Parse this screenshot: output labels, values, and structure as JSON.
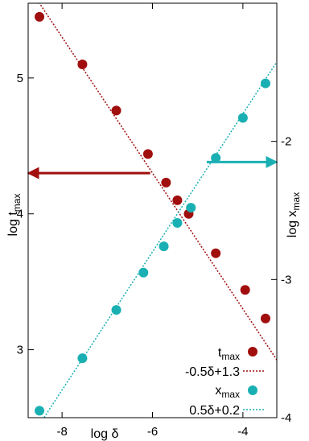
{
  "chart_data": {
    "type": "scatter",
    "title": "",
    "xlabel": "log δ",
    "ylabel_left": "log t",
    "ylabel_left_sub": "max",
    "ylabel_right": "log x",
    "ylabel_right_sub": "max",
    "xlim": [
      -8.75,
      -3.25
    ],
    "ylim_left": [
      2.5,
      5.55
    ],
    "ylim_right": [
      -4.0,
      -1.0
    ],
    "x_ticks": [
      -8,
      -6,
      -4
    ],
    "y_left_ticks": [
      3,
      4,
      5
    ],
    "y_right_ticks": [
      -4,
      -3,
      -2
    ],
    "grid": false,
    "legend_position": "bottom-right",
    "series": [
      {
        "name": "t",
        "name_sub": "max",
        "axis": "left",
        "color": "#a10e0e",
        "x": [
          -8.5,
          -7.55,
          -6.8,
          -6.1,
          -5.7,
          -5.45,
          -5.2,
          -4.6,
          -3.95,
          -3.5
        ],
        "y": [
          5.45,
          5.1,
          4.76,
          4.44,
          4.23,
          4.1,
          4.0,
          3.71,
          3.44,
          3.23
        ]
      },
      {
        "name": "x",
        "name_sub": "max",
        "axis": "right",
        "color": "#1ab0b3",
        "x": [
          -8.5,
          -7.55,
          -6.8,
          -6.2,
          -5.75,
          -5.45,
          -5.15,
          -4.6,
          -4.0,
          -3.5
        ],
        "y": [
          -3.95,
          -3.57,
          -3.22,
          -2.95,
          -2.76,
          -2.59,
          -2.48,
          -2.12,
          -1.83,
          -1.58
        ]
      }
    ],
    "fits": [
      {
        "label": "-0.5δ+1.3",
        "axis": "left",
        "color": "#a10e0e",
        "slope": -0.5,
        "intercept": 1.3
      },
      {
        "label": "0.5δ+0.2",
        "axis": "right",
        "color": "#1ab0b3",
        "slope": 0.5,
        "intercept": 0.2
      }
    ],
    "annotations": [
      {
        "kind": "arrow",
        "direction": "left",
        "color": "#a10e0e",
        "y_axis": "left",
        "y": 4.3,
        "x_from": -6.05,
        "x_to": -8.75
      },
      {
        "kind": "arrow",
        "direction": "right",
        "color": "#1ab0b3",
        "y_axis": "right",
        "y": -2.15,
        "x_from": -4.8,
        "x_to": -3.25
      }
    ]
  }
}
